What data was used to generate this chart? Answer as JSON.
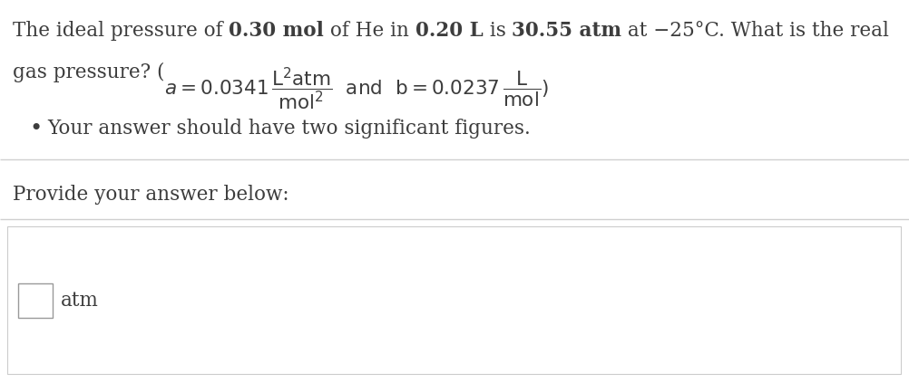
{
  "bg_color": "#ffffff",
  "text_color": "#3d3d3d",
  "separator_color": "#d0d0d0",
  "input_area_border": "#cccccc",
  "input_box_border": "#999999",
  "input_box_color": "#ffffff",
  "fig_width": 10.03,
  "fig_height": 4.23,
  "dpi": 100,
  "fs_main": 15.5,
  "line1_segments": [
    [
      "The ideal pressure of ",
      false
    ],
    [
      "0.30 mol",
      true
    ],
    [
      " of He in ",
      false
    ],
    [
      "0.20 L",
      true
    ],
    [
      " is ",
      false
    ],
    [
      "30.55 atm",
      true
    ],
    [
      " at −25°C. What is the real",
      false
    ]
  ],
  "line2_prefix": "gas pressure? (",
  "bullet_text": "Your answer should have two significant figures.",
  "provide_text": "Provide your answer below:",
  "unit_text": "atm"
}
